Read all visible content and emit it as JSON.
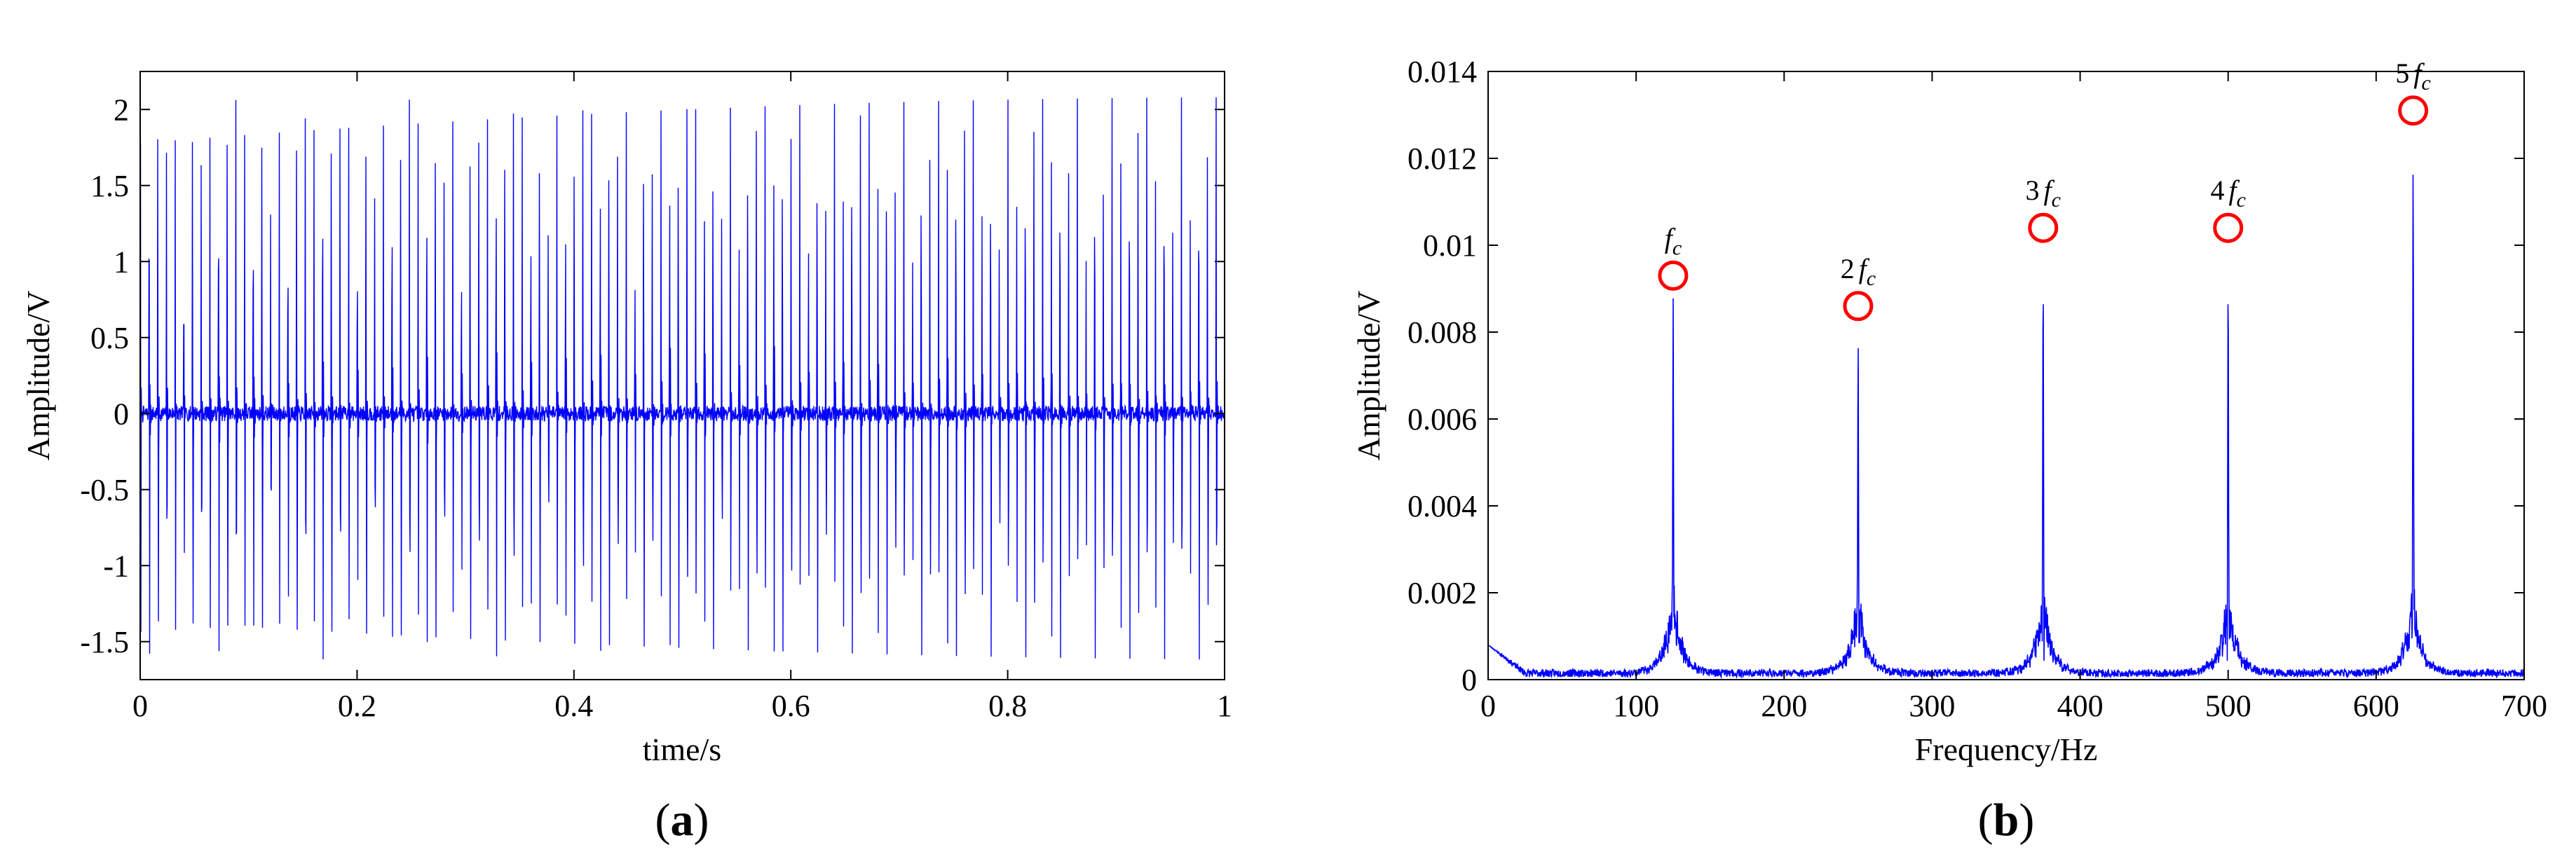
{
  "chart_data": [
    {
      "panel": "(a)",
      "panel_letter": "a",
      "type": "line",
      "title": "",
      "xlabel": "time/s",
      "ylabel": "Amplitude/V",
      "xlim": [
        0,
        1
      ],
      "ylim": [
        -1.75,
        2.25
      ],
      "xticks": [
        0,
        0.2,
        0.4,
        0.6,
        0.8,
        1
      ],
      "xtick_labels": [
        "0",
        "0.2",
        "0.4",
        "0.6",
        "0.8",
        "1"
      ],
      "yticks": [
        -1.5,
        -1,
        -0.5,
        0,
        0.5,
        1,
        1.5,
        2
      ],
      "ytick_labels": [
        "-1.5",
        "-1",
        "-0.5",
        "0",
        "0.5",
        "1",
        "1.5",
        "2"
      ],
      "grid": false,
      "line_color": "#0000ff",
      "signal": {
        "description": "periodic impulse train",
        "impulse_period_s": 0.008,
        "modulation_period_s": 0.0833,
        "max_value": 2.08,
        "min_value": -1.62,
        "noise_amplitude": 0.05
      }
    },
    {
      "panel": "(b)",
      "panel_letter": "b",
      "type": "line",
      "title": "",
      "xlabel": "Frequency/Hz",
      "ylabel": "Amplitude/V",
      "xlim": [
        0,
        700
      ],
      "ylim": [
        0,
        0.014
      ],
      "xticks": [
        0,
        100,
        200,
        300,
        400,
        500,
        600,
        700
      ],
      "xtick_labels": [
        "0",
        "100",
        "200",
        "300",
        "400",
        "500",
        "600",
        "700"
      ],
      "yticks": [
        0,
        0.002,
        0.004,
        0.006,
        0.008,
        0.01,
        0.012,
        0.014
      ],
      "ytick_labels": [
        "0",
        "0.002",
        "0.004",
        "0.006",
        "0.008",
        "0.01",
        "0.012",
        "0.014"
      ],
      "grid": false,
      "line_color": "#0000ff",
      "marker_color": "#ff0000",
      "peaks": [
        {
          "x": 125,
          "y": 0.0093,
          "label_num": "",
          "label_var": "f",
          "label_sub": "c"
        },
        {
          "x": 250,
          "y": 0.0086,
          "label_num": "2",
          "label_var": "f",
          "label_sub": "c"
        },
        {
          "x": 375,
          "y": 0.0104,
          "label_num": "3",
          "label_var": "f",
          "label_sub": "c"
        },
        {
          "x": 500,
          "y": 0.0104,
          "label_num": "4",
          "label_var": "f",
          "label_sub": "c"
        },
        {
          "x": 625,
          "y": 0.0131,
          "label_num": "5",
          "label_var": "f",
          "label_sub": "c"
        }
      ],
      "baseline": {
        "start_value": 0.0008,
        "noise_level": 0.0002,
        "sideband_value": 0.0017
      }
    }
  ]
}
